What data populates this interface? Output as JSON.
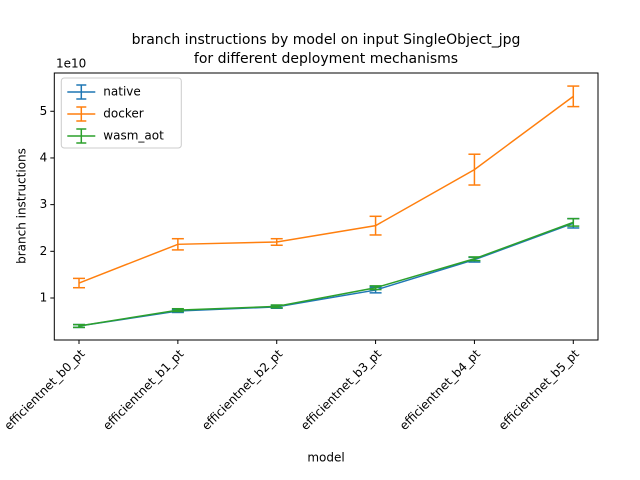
{
  "chart_data": {
    "type": "line",
    "title": [
      "branch instructions by model on input SingleObject_jpg",
      "for different deployment mechanisms"
    ],
    "xlabel": "model",
    "ylabel": "branch instructions",
    "y_offset_label": "1e10",
    "categories": [
      "efficientnet_b0_pt",
      "efficientnet_b1_pt",
      "efficientnet_b2_pt",
      "efficientnet_b3_pt",
      "efficientnet_b4_pt",
      "efficientnet_b5_pt"
    ],
    "series": [
      {
        "name": "native",
        "color": "#1f77b4",
        "values": [
          0.4,
          0.72,
          0.81,
          1.17,
          1.82,
          2.6
        ],
        "errors": [
          0.03,
          0.03,
          0.03,
          0.06,
          0.05,
          0.1
        ]
      },
      {
        "name": "docker",
        "color": "#ff7f0e",
        "values": [
          1.32,
          2.15,
          2.2,
          2.55,
          3.75,
          5.32
        ],
        "errors": [
          0.1,
          0.12,
          0.07,
          0.2,
          0.33,
          0.22
        ]
      },
      {
        "name": "wasm_aot",
        "color": "#2ca02c",
        "values": [
          0.4,
          0.74,
          0.82,
          1.22,
          1.84,
          2.62
        ],
        "errors": [
          0.03,
          0.03,
          0.03,
          0.04,
          0.04,
          0.08
        ]
      }
    ],
    "ylim": [
      0.1,
      5.82
    ],
    "yticks": [
      1,
      2,
      3,
      4,
      5
    ],
    "legend": "upper left"
  }
}
